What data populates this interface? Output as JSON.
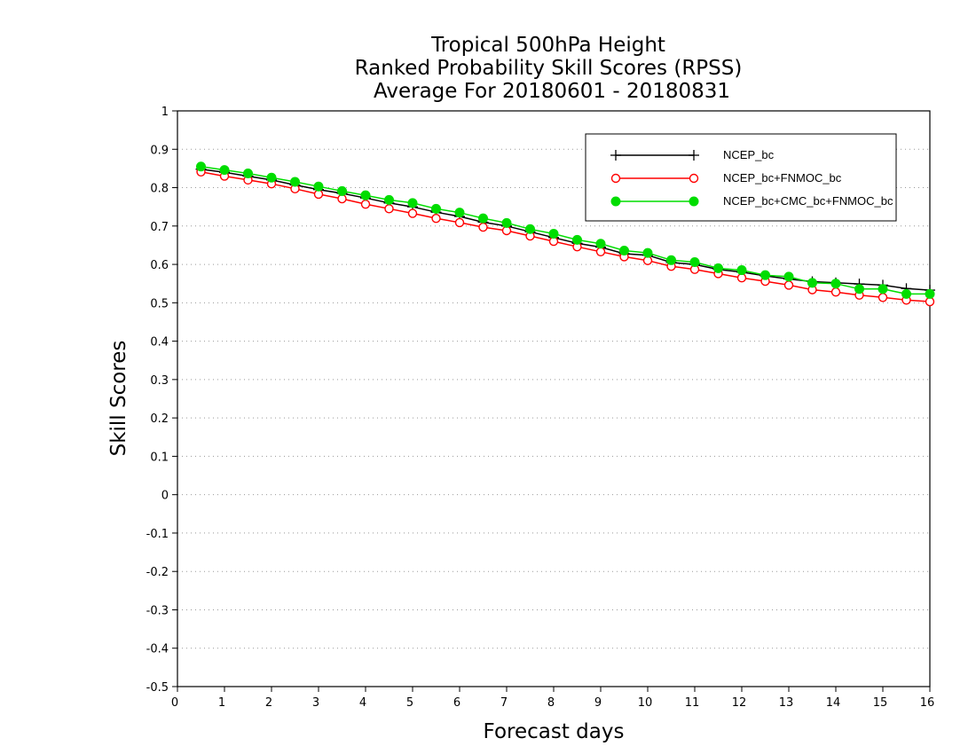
{
  "chart_data": {
    "type": "line",
    "title_lines": [
      "Tropical 500hPa Height",
      "Ranked Probability Skill Scores (RPSS)",
      "Average For 20180601 - 20180831"
    ],
    "xlabel": "Forecast days",
    "ylabel": "Skill Scores",
    "xlim": [
      0,
      16
    ],
    "ylim": [
      -0.5,
      1
    ],
    "xticks": [
      "0",
      "1",
      "2",
      "3",
      "4",
      "5",
      "6",
      "7",
      "8",
      "9",
      "10",
      "11",
      "12",
      "13",
      "14",
      "15",
      "16"
    ],
    "yticks": [
      "1",
      "0.9",
      "0.8",
      "0.7",
      "0.6",
      "0.5",
      "0.4",
      "0.3",
      "0.2",
      "0.1",
      "0",
      "-0.1",
      "-0.2",
      "-0.3",
      "-0.4",
      "-0.5"
    ],
    "grid": "horizontal dotted",
    "legend_position": "top-right",
    "x": [
      0.5,
      1,
      1.5,
      2,
      2.5,
      3,
      3.5,
      4,
      4.5,
      5,
      5.5,
      6,
      6.5,
      7,
      7.5,
      8,
      8.5,
      9,
      9.5,
      10,
      10.5,
      11,
      11.5,
      12,
      12.5,
      13,
      13.5,
      14,
      14.5,
      15,
      15.5,
      16
    ],
    "series": [
      {
        "name": "NCEP_bc",
        "color": "#000000",
        "marker": "plus",
        "values": [
          0.848,
          0.84,
          0.83,
          0.82,
          0.807,
          0.795,
          0.785,
          0.773,
          0.76,
          0.75,
          0.736,
          0.725,
          0.71,
          0.7,
          0.685,
          0.67,
          0.655,
          0.645,
          0.628,
          0.624,
          0.605,
          0.6,
          0.587,
          0.58,
          0.57,
          0.562,
          0.555,
          0.552,
          0.549,
          0.546,
          0.537,
          0.533
        ]
      },
      {
        "name": "NCEP_bc+FNMOC_bc",
        "color": "#ff0000",
        "marker": "open-circle",
        "values": [
          0.841,
          0.83,
          0.82,
          0.81,
          0.797,
          0.783,
          0.771,
          0.757,
          0.745,
          0.733,
          0.72,
          0.709,
          0.697,
          0.688,
          0.674,
          0.66,
          0.646,
          0.633,
          0.62,
          0.61,
          0.595,
          0.587,
          0.576,
          0.565,
          0.556,
          0.546,
          0.534,
          0.528,
          0.52,
          0.514,
          0.507,
          0.503
        ]
      },
      {
        "name": "NCEP_bc+CMC_bc+FNMOC_bc",
        "color": "#00dd00",
        "marker": "filled-circle",
        "values": [
          0.855,
          0.846,
          0.837,
          0.826,
          0.815,
          0.803,
          0.791,
          0.78,
          0.768,
          0.76,
          0.745,
          0.735,
          0.72,
          0.708,
          0.692,
          0.68,
          0.664,
          0.654,
          0.636,
          0.63,
          0.611,
          0.606,
          0.59,
          0.585,
          0.572,
          0.568,
          0.552,
          0.55,
          0.536,
          0.536,
          0.523,
          0.523
        ]
      }
    ]
  }
}
